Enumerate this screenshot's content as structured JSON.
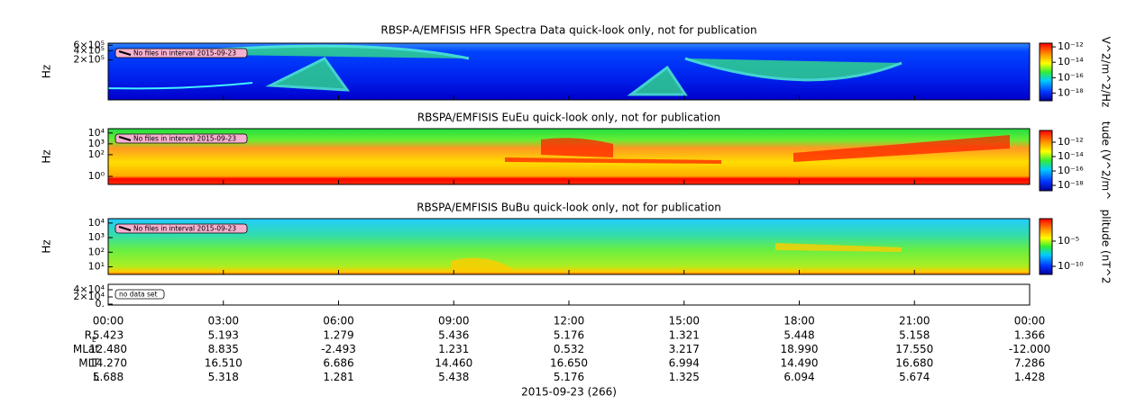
{
  "chart_data": [
    {
      "type": "spectrogram",
      "title": "RBSP-A/EMFISIS  HFR Spectra Data quick-look only, not for publication",
      "ylabel": "Hz",
      "notice": "No files in interval 2015-09-23",
      "log_y": true,
      "ylim": [
        10000,
        700000
      ],
      "yticks": [
        {
          "value": 600000,
          "label": "6×10⁵"
        },
        {
          "value": 400000,
          "label": "4×10⁵"
        },
        {
          "value": 200000,
          "label": "2×10⁵"
        }
      ],
      "colorbar": {
        "label": "V^2/m^2/Hz",
        "zlim": [
          1e-19,
          3e-12
        ],
        "ticks": [
          {
            "value": 1e-12,
            "label": "10⁻¹²"
          },
          {
            "value": 1e-14,
            "label": "10⁻¹⁴"
          },
          {
            "value": 1e-16,
            "label": "10⁻¹⁶"
          },
          {
            "value": 1e-18,
            "label": "10⁻¹⁸"
          }
        ]
      },
      "xlim": [
        0,
        24
      ],
      "xticks": [
        0,
        3,
        6,
        9,
        12,
        15,
        18,
        21,
        24
      ]
    },
    {
      "type": "spectrogram",
      "title": "RBSPA/EMFISIS  EuEu quick-look only, not for publication",
      "ylabel": "Hz",
      "notice": "No files in interval 2015-09-23",
      "log_y": true,
      "ylim": [
        0.18,
        25000
      ],
      "yticks": [
        {
          "value": 10000,
          "label": "10⁴"
        },
        {
          "value": 1000,
          "label": "10³"
        },
        {
          "value": 100,
          "label": "10²"
        },
        {
          "value": 1,
          "label": "10⁰"
        }
      ],
      "colorbar": {
        "label": "tude (V^2/m^",
        "zlim": [
          1.8e-19,
          4.2e-11
        ],
        "ticks": [
          {
            "value": 1e-12,
            "label": "10⁻¹²"
          },
          {
            "value": 1e-14,
            "label": "10⁻¹⁴"
          },
          {
            "value": 1e-16,
            "label": "10⁻¹⁶"
          },
          {
            "value": 1e-18,
            "label": "10⁻¹⁸"
          }
        ]
      },
      "xlim": [
        0,
        24
      ],
      "xticks": [
        0,
        3,
        6,
        9,
        12,
        15,
        18,
        21,
        24
      ]
    },
    {
      "type": "spectrogram",
      "title": "RBSPA/EMFISIS  BuBu quick-look only, not for publication",
      "ylabel": "Hz",
      "notice": "No files in interval 2015-09-23",
      "log_y": true,
      "ylim": [
        3,
        20000
      ],
      "yticks": [
        {
          "value": 10000,
          "label": "10⁴"
        },
        {
          "value": 1000,
          "label": "10³"
        },
        {
          "value": 100,
          "label": "10²"
        },
        {
          "value": 10,
          "label": "10¹"
        }
      ],
      "colorbar": {
        "label": "plitude (nT^2",
        "zlim": [
          2.5e-12,
          0.29
        ],
        "ticks": [
          {
            "value": 1e-05,
            "label": "10⁻⁵"
          },
          {
            "value": 1e-10,
            "label": "10⁻¹⁰"
          }
        ]
      },
      "xlim": [
        0,
        24
      ],
      "xticks": [
        0,
        3,
        6,
        9,
        12,
        15,
        18,
        21,
        24
      ]
    },
    {
      "type": "empty",
      "notice": "no data set",
      "log_y": false,
      "ylim": [
        -2500,
        55000
      ],
      "yticks": [
        {
          "value": 40000,
          "label": "4×10⁴"
        },
        {
          "value": 20000,
          "label": "2×10⁴"
        },
        {
          "value": 0,
          "label": "0."
        }
      ],
      "xlim": [
        0,
        24
      ],
      "xticks": [
        {
          "value": 0,
          "label": "00:00"
        },
        {
          "value": 3,
          "label": "03:00"
        },
        {
          "value": 6,
          "label": "06:00"
        },
        {
          "value": 9,
          "label": "09:00"
        },
        {
          "value": 12,
          "label": "12:00"
        },
        {
          "value": 15,
          "label": "15:00"
        },
        {
          "value": 18,
          "label": "18:00"
        },
        {
          "value": 21,
          "label": "21:00"
        },
        {
          "value": 24,
          "label": "00:00"
        }
      ],
      "xlabel": "2015-09-23 (266)"
    }
  ],
  "ephemeris": [
    {
      "label": "R",
      "sub": "E",
      "values": [
        "5.423",
        "5.193",
        "1.279",
        "5.436",
        "5.176",
        "1.321",
        "5.448",
        "5.158",
        "1.366"
      ]
    },
    {
      "label": "MLat",
      "values": [
        "12.480",
        "8.835",
        "-2.493",
        "1.231",
        "0.532",
        "3.217",
        "18.990",
        "17.550",
        "-12.000"
      ]
    },
    {
      "label": "MLT",
      "values": [
        "14.270",
        "16.510",
        "6.686",
        "14.460",
        "16.650",
        "6.994",
        "14.490",
        "16.680",
        "7.286"
      ]
    },
    {
      "label": "L",
      "values": [
        "5.688",
        "5.318",
        "1.281",
        "5.438",
        "5.176",
        "1.325",
        "6.094",
        "5.674",
        "1.428"
      ]
    }
  ]
}
